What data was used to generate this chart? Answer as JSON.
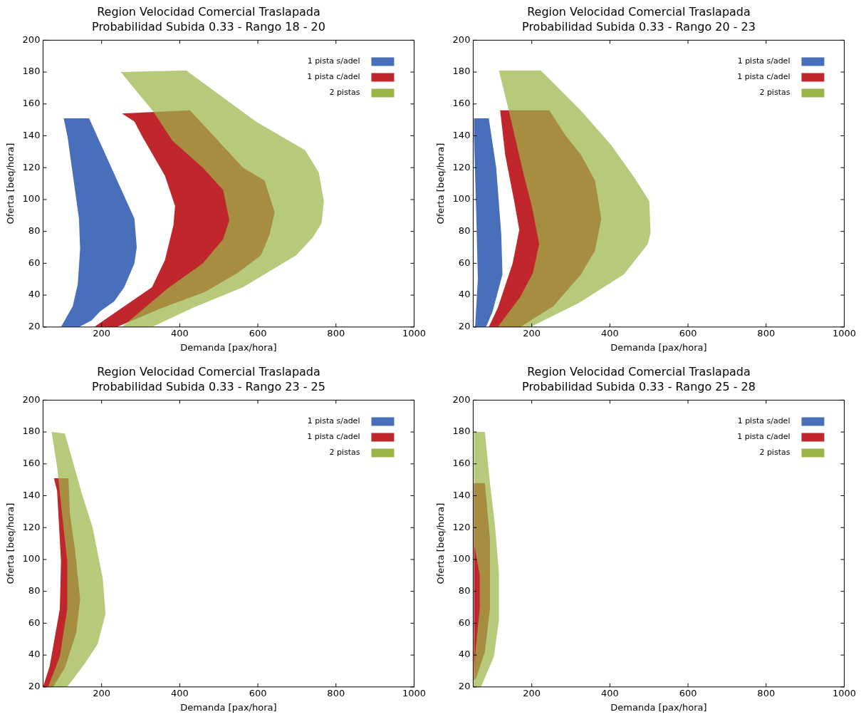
{
  "chart_data": [
    {
      "type": "area",
      "title": "Region Velocidad Comercial Traslapada",
      "subtitle": "Probabilidad Subida 0.33 - Rango 18 - 20",
      "xlabel": "Demanda [pax/hora]",
      "ylabel": "Oferta [beq/hora]",
      "legend": "top right",
      "xlim": [
        50,
        1000
      ],
      "xticks": [
        200,
        400,
        600,
        800,
        1000
      ],
      "ylim": [
        20,
        200
      ],
      "yticks": [
        20,
        40,
        60,
        80,
        100,
        120,
        140,
        160,
        180,
        200
      ],
      "series": [
        {
          "name": "1 pista s/adel",
          "color": "#4a6fba",
          "x": [
            103,
            168,
            284,
            290,
            284,
            258,
            232,
            197,
            174,
            142,
            96,
            126,
            139,
            145,
            142,
            113,
            103
          ],
          "values": [
            151,
            151,
            88,
            70,
            60,
            45,
            36,
            30,
            24,
            20,
            20,
            33,
            47,
            69,
            88,
            139,
            151
          ]
        },
        {
          "name": "1 pista c/adel",
          "color": "#c0272d",
          "x": [
            252,
            426,
            498,
            562,
            617,
            643,
            630,
            608,
            549,
            465,
            355,
            239,
            181,
            258,
            329,
            362,
            384,
            388,
            362,
            303,
            284,
            252
          ],
          "values": [
            154,
            156,
            137,
            120,
            112,
            92,
            78,
            65,
            54,
            42,
            32,
            20,
            20,
            33,
            45,
            62,
            84,
            96,
            115,
            140,
            149,
            154
          ]
        },
        {
          "name": "2 pistas",
          "color": "#9bb548",
          "x": [
            249,
            417,
            595,
            721,
            756,
            769,
            763,
            740,
            698,
            562,
            433,
            329,
            252,
            368,
            459,
            511,
            527,
            511,
            459,
            381,
            333,
            249
          ],
          "values": [
            180,
            181,
            149,
            131,
            117,
            99,
            85,
            76,
            65,
            45,
            32,
            20,
            20,
            44,
            60,
            75,
            87,
            106,
            120,
            137,
            155,
            180
          ]
        }
      ]
    },
    {
      "type": "area",
      "title": "Region Velocidad Comercial Traslapada",
      "subtitle": "Probabilidad Subida 0.33 - Rango 20 - 23",
      "xlabel": "Demanda [pax/hora]",
      "ylabel": "Oferta [beq/hora]",
      "legend": "top right",
      "xlim": [
        50,
        1000
      ],
      "xticks": [
        200,
        400,
        600,
        800,
        1000
      ],
      "ylim": [
        20,
        200
      ],
      "yticks": [
        20,
        40,
        60,
        80,
        100,
        120,
        140,
        160,
        180,
        200
      ],
      "series": [
        {
          "name": "1 pista s/adel",
          "color": "#4a6fba",
          "x": [
            52,
            90,
            109,
            122,
            125,
            100,
            83,
            55,
            62,
            58,
            52,
            52
          ],
          "values": [
            151,
            151,
            120,
            78,
            53,
            30,
            20,
            20,
            50,
            90,
            140,
            151
          ]
        },
        {
          "name": "1 pista c/adel",
          "color": "#c0272d",
          "x": [
            119,
            245,
            287,
            326,
            362,
            378,
            362,
            326,
            255,
            171,
            90,
            113,
            151,
            168,
            155,
            132,
            119
          ],
          "values": [
            156,
            156,
            140,
            128,
            112,
            88,
            68,
            53,
            33,
            20,
            20,
            32,
            60,
            81,
            99,
            128,
            156
          ]
        },
        {
          "name": "2 pistas",
          "color": "#9bb548",
          "x": [
            116,
            223,
            329,
            404,
            462,
            501,
            504,
            497,
            436,
            320,
            197,
            113,
            171,
            203,
            219,
            200,
            180,
            142,
            116
          ],
          "values": [
            181,
            181,
            155,
            134,
            114,
            99,
            79,
            72,
            53,
            35,
            20,
            20,
            39,
            54,
            72,
            96,
            115,
            155,
            181
          ]
        }
      ]
    },
    {
      "type": "area",
      "title": "Region Velocidad Comercial Traslapada",
      "subtitle": "Probabilidad Subida 0.33 - Rango 23 - 25",
      "xlabel": "Demanda [pax/hora]",
      "ylabel": "Oferta [beq/hora]",
      "legend": "top right",
      "xlim": [
        50,
        1000
      ],
      "xticks": [
        200,
        400,
        600,
        800,
        1000
      ],
      "ylim": [
        20,
        200
      ],
      "yticks": [
        20,
        40,
        60,
        80,
        100,
        120,
        140,
        160,
        180,
        200
      ],
      "series": [
        {
          "name": "1 pista s/adel",
          "color": "#4a6fba"
        },
        {
          "name": "1 pista c/adel",
          "color": "#c0272d",
          "x": [
            78,
            115,
            119,
            132,
            145,
            135,
            106,
            76,
            50,
            67,
            93,
            96,
            86,
            78
          ],
          "values": [
            151,
            151,
            128,
            106,
            75,
            54,
            32,
            20,
            20,
            33,
            69,
            99,
            143,
            151
          ]
        },
        {
          "name": "2 pistas",
          "color": "#9bb548",
          "x": [
            72,
            106,
            151,
            177,
            203,
            210,
            190,
            158,
            112,
            63,
            93,
            112,
            112,
            99,
            89,
            86,
            72
          ],
          "values": [
            180,
            179,
            140,
            120,
            88,
            66,
            47,
            35,
            20,
            20,
            39,
            69,
            99,
            128,
            151,
            158,
            180
          ]
        }
      ]
    },
    {
      "type": "area",
      "title": "Region Velocidad Comercial Traslapada",
      "subtitle": "Probabilidad Subida 0.33 - Rango 25 - 28",
      "xlabel": "Demanda [pax/hora]",
      "ylabel": "Oferta [beq/hora]",
      "legend": "top right",
      "xlim": [
        50,
        1000
      ],
      "xticks": [
        200,
        400,
        600,
        800,
        1000
      ],
      "ylim": [
        20,
        200
      ],
      "yticks": [
        20,
        40,
        60,
        80,
        100,
        120,
        140,
        160,
        180,
        200
      ],
      "series": [
        {
          "name": "1 pista s/adel",
          "color": "#4a6fba"
        },
        {
          "name": "1 pista c/adel",
          "color": "#c0272d",
          "x": [
            52,
            80,
            93,
            93,
            80,
            58,
            52,
            52
          ],
          "values": [
            148,
            148,
            113,
            69,
            42,
            26,
            24,
            148
          ]
        },
        {
          "name": "2 pistas",
          "color": "#9bb548",
          "x": [
            52,
            80,
            93,
            106,
            116,
            116,
            103,
            70,
            51,
            55,
            67,
            67,
            52,
            52
          ],
          "values": [
            180,
            180,
            148,
            121,
            91,
            62,
            39,
            20,
            20,
            40,
            70,
            90,
            110,
            180
          ]
        }
      ]
    }
  ]
}
